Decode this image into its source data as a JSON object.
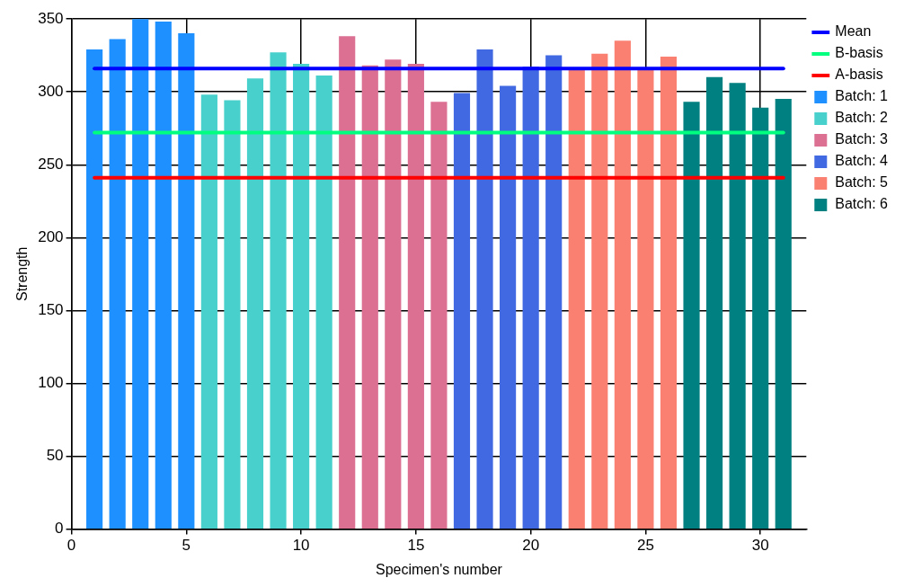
{
  "chart_data": {
    "type": "bar",
    "xlabel": "Specimen's number",
    "ylabel": "Strength",
    "xlim": [
      0,
      32
    ],
    "xticks": [
      0,
      5,
      10,
      15,
      20,
      25,
      30
    ],
    "ylim": [
      0,
      350
    ],
    "yticks": [
      0,
      50,
      100,
      150,
      200,
      250,
      300,
      350
    ],
    "grid": true,
    "legend": "top right",
    "series": [
      {
        "name": "Mean",
        "type": "line",
        "color": "#0000ff",
        "x": [
          1,
          31
        ],
        "values": [
          316,
          316
        ]
      },
      {
        "name": "B-basis",
        "type": "line",
        "color": "#00ff7f",
        "x": [
          1,
          31
        ],
        "values": [
          272,
          272
        ]
      },
      {
        "name": "A-basis",
        "type": "line",
        "color": "#ff0000",
        "x": [
          1,
          31
        ],
        "values": [
          241,
          241
        ]
      },
      {
        "name": "Batch: 1",
        "color": "#1e90ff",
        "x": [
          1,
          2,
          3,
          4,
          5
        ],
        "values": [
          329,
          336,
          350,
          348,
          340
        ]
      },
      {
        "name": "Batch: 2",
        "color": "#48d1cc",
        "x": [
          6,
          7,
          8,
          9,
          10,
          11
        ],
        "values": [
          298,
          294,
          309,
          327,
          319,
          311
        ]
      },
      {
        "name": "Batch: 3",
        "color": "#db7093",
        "x": [
          12,
          13,
          14,
          15,
          16
        ],
        "values": [
          338,
          318,
          322,
          319,
          293
        ]
      },
      {
        "name": "Batch: 4",
        "color": "#4169e1",
        "x": [
          17,
          18,
          19,
          20,
          21
        ],
        "values": [
          299,
          329,
          304,
          317,
          325
        ]
      },
      {
        "name": "Batch: 5",
        "color": "#fa8072",
        "x": [
          22,
          23,
          24,
          25,
          26
        ],
        "values": [
          316,
          326,
          335,
          316,
          324
        ]
      },
      {
        "name": "Batch: 6",
        "color": "#008080",
        "x": [
          27,
          28,
          29,
          30,
          31
        ],
        "values": [
          293,
          310,
          306,
          289,
          295
        ]
      }
    ]
  }
}
